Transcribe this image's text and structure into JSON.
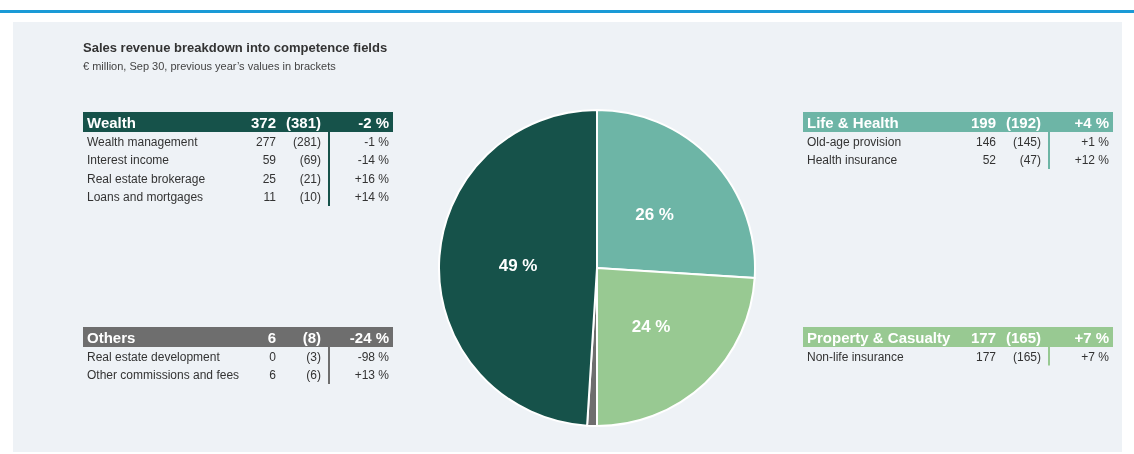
{
  "chart_data": [
    {
      "type": "other",
      "title": "Sales revenue breakdown into competence fields",
      "subtitle": "€ million, Sep 30, previous year’s values in brackets"
    },
    {
      "type": "pie",
      "categories": [
        null,
        null,
        null,
        null
      ],
      "values": [
        26,
        24,
        1,
        49
      ],
      "colors": [
        "#6db5a6",
        "#98c992",
        "#6e6e6e",
        "#16524a"
      ],
      "value_labels": [
        "26 %",
        "24 %",
        null,
        "49 %"
      ]
    },
    {
      "type": "other",
      "color": "#16524a",
      "categories": [
        "Wealth",
        "Wealth management",
        "Interest income",
        "Real estate brokerage",
        "Loans and mortgages"
      ],
      "cell_labels": [
        [
          "372",
          "(381)",
          "-2 %"
        ],
        [
          "277",
          "(281)",
          "-1 %"
        ],
        [
          "59",
          "(69)",
          "-14 %"
        ],
        [
          "25",
          "(21)",
          "+16 %"
        ],
        [
          "11",
          "(10)",
          "+14 %"
        ]
      ]
    },
    {
      "type": "other",
      "color": "#6e6e6e",
      "categories": [
        "Others",
        "Real estate development",
        "Other commissions and fees"
      ],
      "cell_labels": [
        [
          "6",
          "(8)",
          "-24 %"
        ],
        [
          "0",
          "(3)",
          "-98 %"
        ],
        [
          "6",
          "(6)",
          "+13 %"
        ]
      ]
    },
    {
      "type": "other",
      "color": "#6db5a6",
      "categories": [
        "Life & Health",
        "Old-age provision",
        "Health insurance"
      ],
      "cell_labels": [
        [
          "199",
          "(192)",
          "+4 %"
        ],
        [
          "146",
          "(145)",
          "+1 %"
        ],
        [
          "52",
          "(47)",
          "+12 %"
        ]
      ]
    },
    {
      "type": "other",
      "color": "#98c992",
      "categories": [
        "Property & Casualty",
        "Non-life insurance"
      ],
      "cell_labels": [
        [
          "177",
          "(165)",
          "+7 %"
        ],
        [
          "177",
          "(165)",
          "+7 %"
        ]
      ]
    }
  ]
}
